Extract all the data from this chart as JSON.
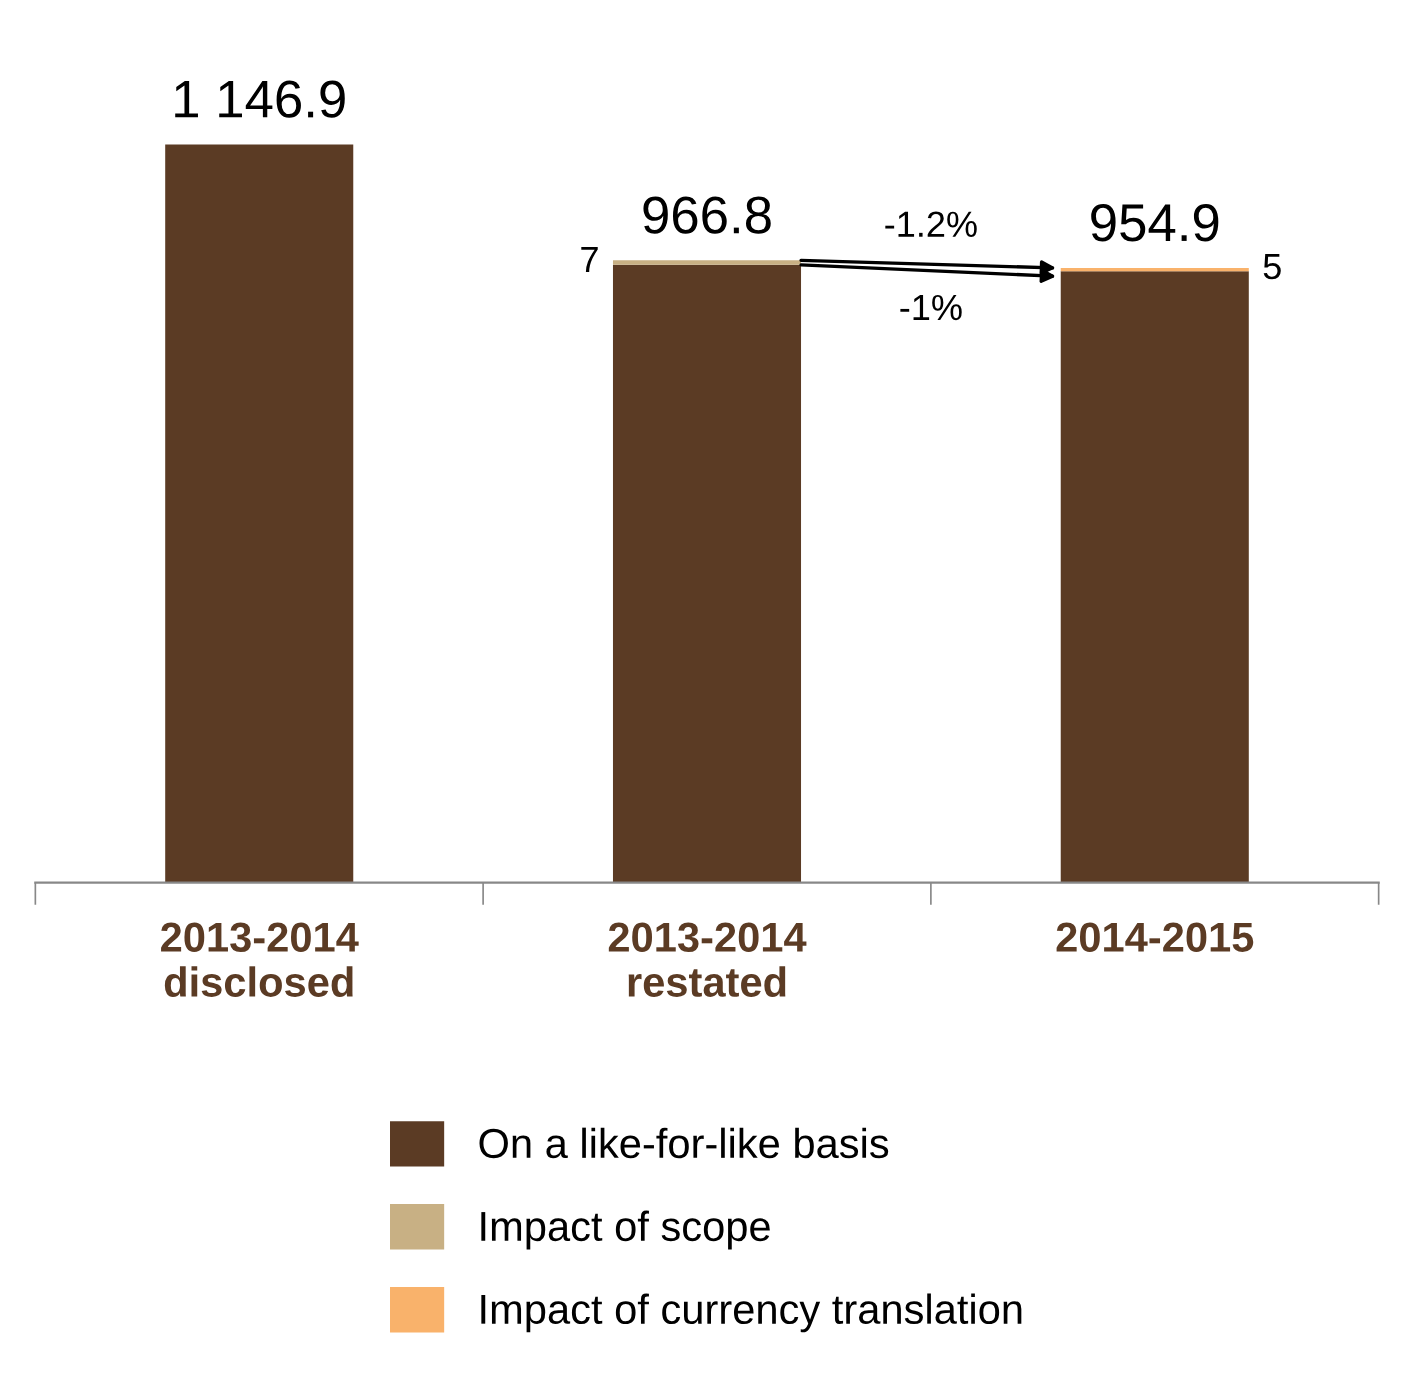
{
  "chart_data": {
    "type": "bar",
    "stacked": true,
    "categories": [
      "2013-2014\ndisclosed",
      "2013-2014\nrestated",
      "2014-2015"
    ],
    "series": [
      {
        "name": "On a like-for-like basis",
        "color": "#5b3b24",
        "values": [
          1146.9,
          959.8,
          949.9
        ]
      },
      {
        "name": "Impact of scope",
        "color": "#c8b084",
        "values": [
          0,
          7,
          0
        ],
        "value_labels": [
          null,
          "7",
          null
        ]
      },
      {
        "name": "Impact of currency translation",
        "color": "#f9b26b",
        "values": [
          0,
          0,
          5
        ],
        "value_labels": [
          null,
          null,
          "5"
        ]
      }
    ],
    "totals": [
      "1 146.9",
      "966.8",
      "954.9"
    ],
    "tick_labels": "x",
    "grid": false,
    "legend": "bottom",
    "annotations": [
      "-1.2%",
      "-1%"
    ]
  }
}
